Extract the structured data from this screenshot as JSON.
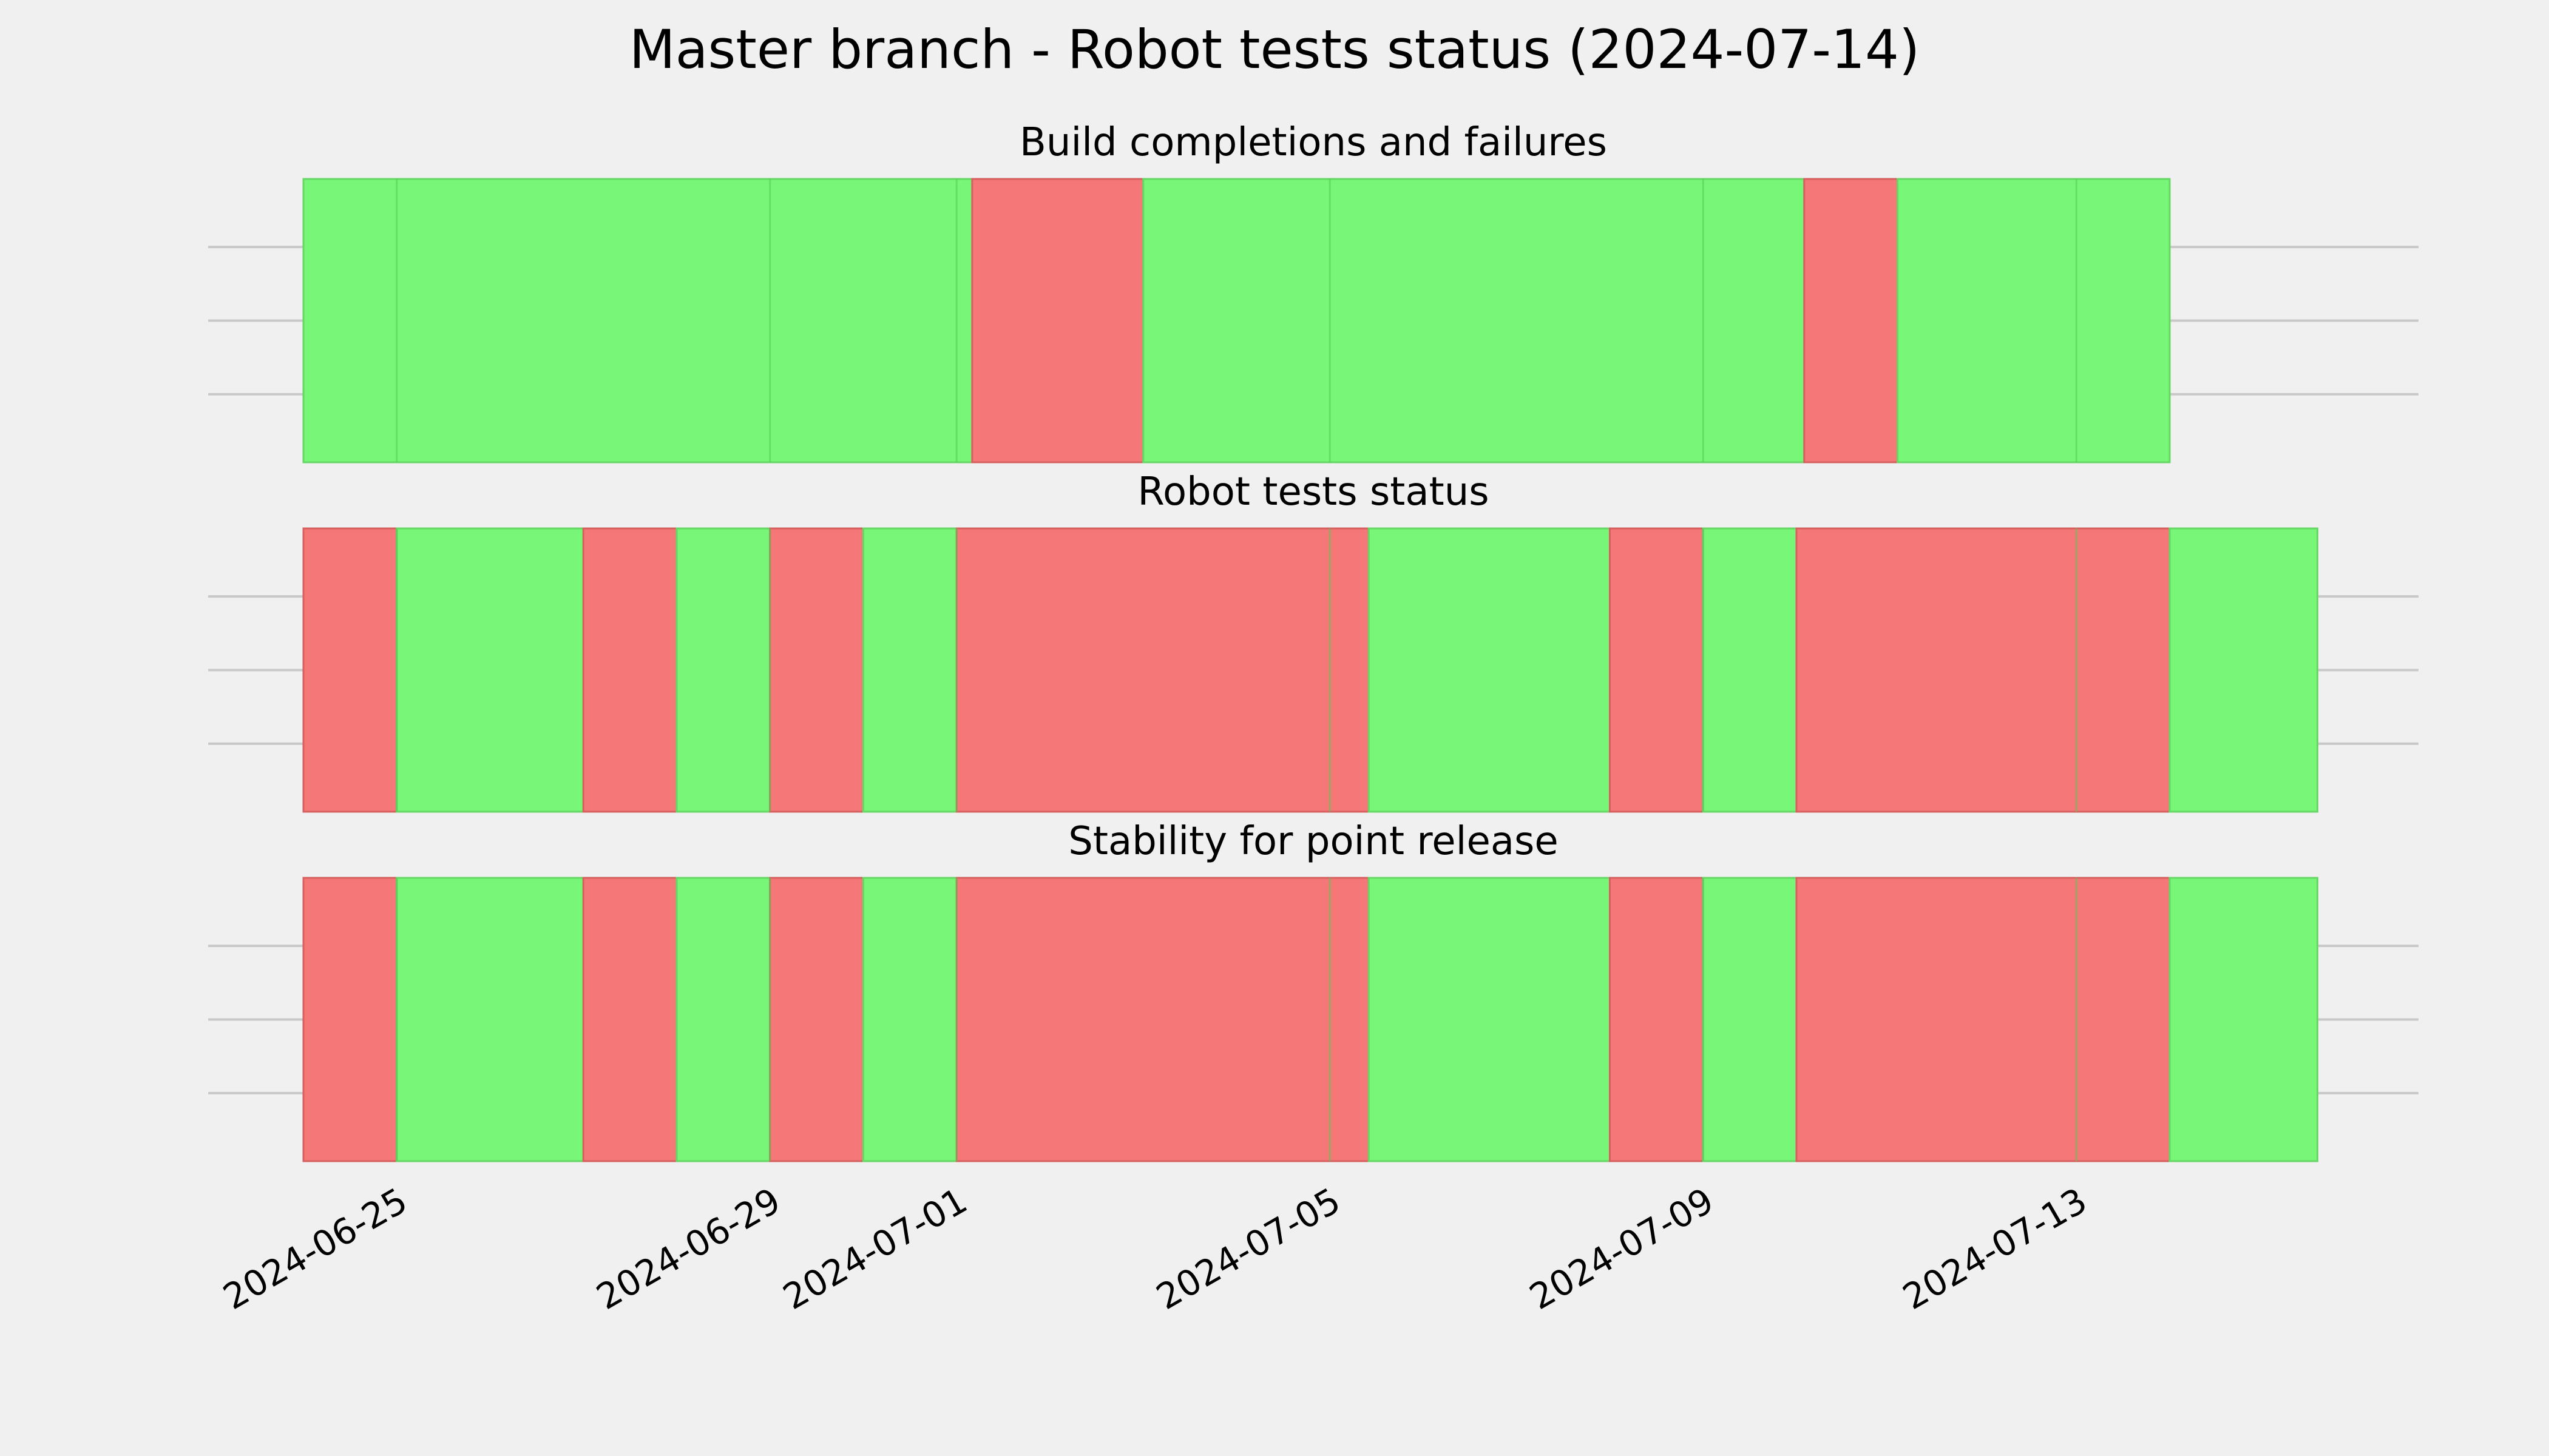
{
  "chart_data": {
    "type": "timeline",
    "title": "Master branch - Robot tests status (2024-07-14)",
    "date_range": [
      "2024-06-24",
      "2024-07-14"
    ],
    "x_ticks": [
      "2024-06-25",
      "2024-06-29",
      "2024-07-01",
      "2024-07-05",
      "2024-07-09",
      "2024-07-13"
    ],
    "status_colors": {
      "pass": "#77f677",
      "fail": "#f67777"
    },
    "panels": [
      {
        "title": "Build completions and failures",
        "segments": [
          {
            "start": "2024-06-24",
            "end": "2024-07-01 04:00",
            "status": "pass"
          },
          {
            "start": "2024-07-01 04:00",
            "end": "2024-07-03",
            "status": "fail"
          },
          {
            "start": "2024-07-03",
            "end": "2024-07-10 02:00",
            "status": "pass"
          },
          {
            "start": "2024-07-10 02:00",
            "end": "2024-07-11 02:00",
            "status": "fail"
          },
          {
            "start": "2024-07-11 02:00",
            "end": "2024-07-14",
            "status": "pass"
          }
        ]
      },
      {
        "title": "Robot tests status",
        "segments": [
          {
            "start": "2024-06-24",
            "end": "2024-06-25",
            "status": "fail"
          },
          {
            "start": "2024-06-25",
            "end": "2024-06-27",
            "status": "pass"
          },
          {
            "start": "2024-06-27",
            "end": "2024-06-28",
            "status": "fail"
          },
          {
            "start": "2024-06-28",
            "end": "2024-06-29",
            "status": "pass"
          },
          {
            "start": "2024-06-29",
            "end": "2024-06-30",
            "status": "fail"
          },
          {
            "start": "2024-06-30",
            "end": "2024-07-01",
            "status": "pass"
          },
          {
            "start": "2024-07-01",
            "end": "2024-07-05 10:00",
            "status": "fail"
          },
          {
            "start": "2024-07-05 10:00",
            "end": "2024-07-08",
            "status": "pass"
          },
          {
            "start": "2024-07-08",
            "end": "2024-07-09",
            "status": "fail"
          },
          {
            "start": "2024-07-09",
            "end": "2024-07-10",
            "status": "pass"
          },
          {
            "start": "2024-07-10",
            "end": "2024-07-14",
            "status": "fail"
          },
          {
            "start": "2024-07-14",
            "end": "2024-07-15 14:00",
            "status": "pass"
          }
        ]
      },
      {
        "title": "Stability for point release",
        "segments": [
          {
            "start": "2024-06-24",
            "end": "2024-06-25",
            "status": "fail"
          },
          {
            "start": "2024-06-25",
            "end": "2024-06-27",
            "status": "pass"
          },
          {
            "start": "2024-06-27",
            "end": "2024-06-28",
            "status": "fail"
          },
          {
            "start": "2024-06-28",
            "end": "2024-06-29",
            "status": "pass"
          },
          {
            "start": "2024-06-29",
            "end": "2024-06-30",
            "status": "fail"
          },
          {
            "start": "2024-06-30",
            "end": "2024-07-01",
            "status": "pass"
          },
          {
            "start": "2024-07-01",
            "end": "2024-07-05 10:00",
            "status": "fail"
          },
          {
            "start": "2024-07-05 10:00",
            "end": "2024-07-08",
            "status": "pass"
          },
          {
            "start": "2024-07-08",
            "end": "2024-07-09",
            "status": "fail"
          },
          {
            "start": "2024-07-09",
            "end": "2024-07-10",
            "status": "pass"
          },
          {
            "start": "2024-07-10",
            "end": "2024-07-14",
            "status": "fail"
          },
          {
            "start": "2024-07-14",
            "end": "2024-07-15 14:00",
            "status": "pass"
          }
        ]
      }
    ]
  }
}
